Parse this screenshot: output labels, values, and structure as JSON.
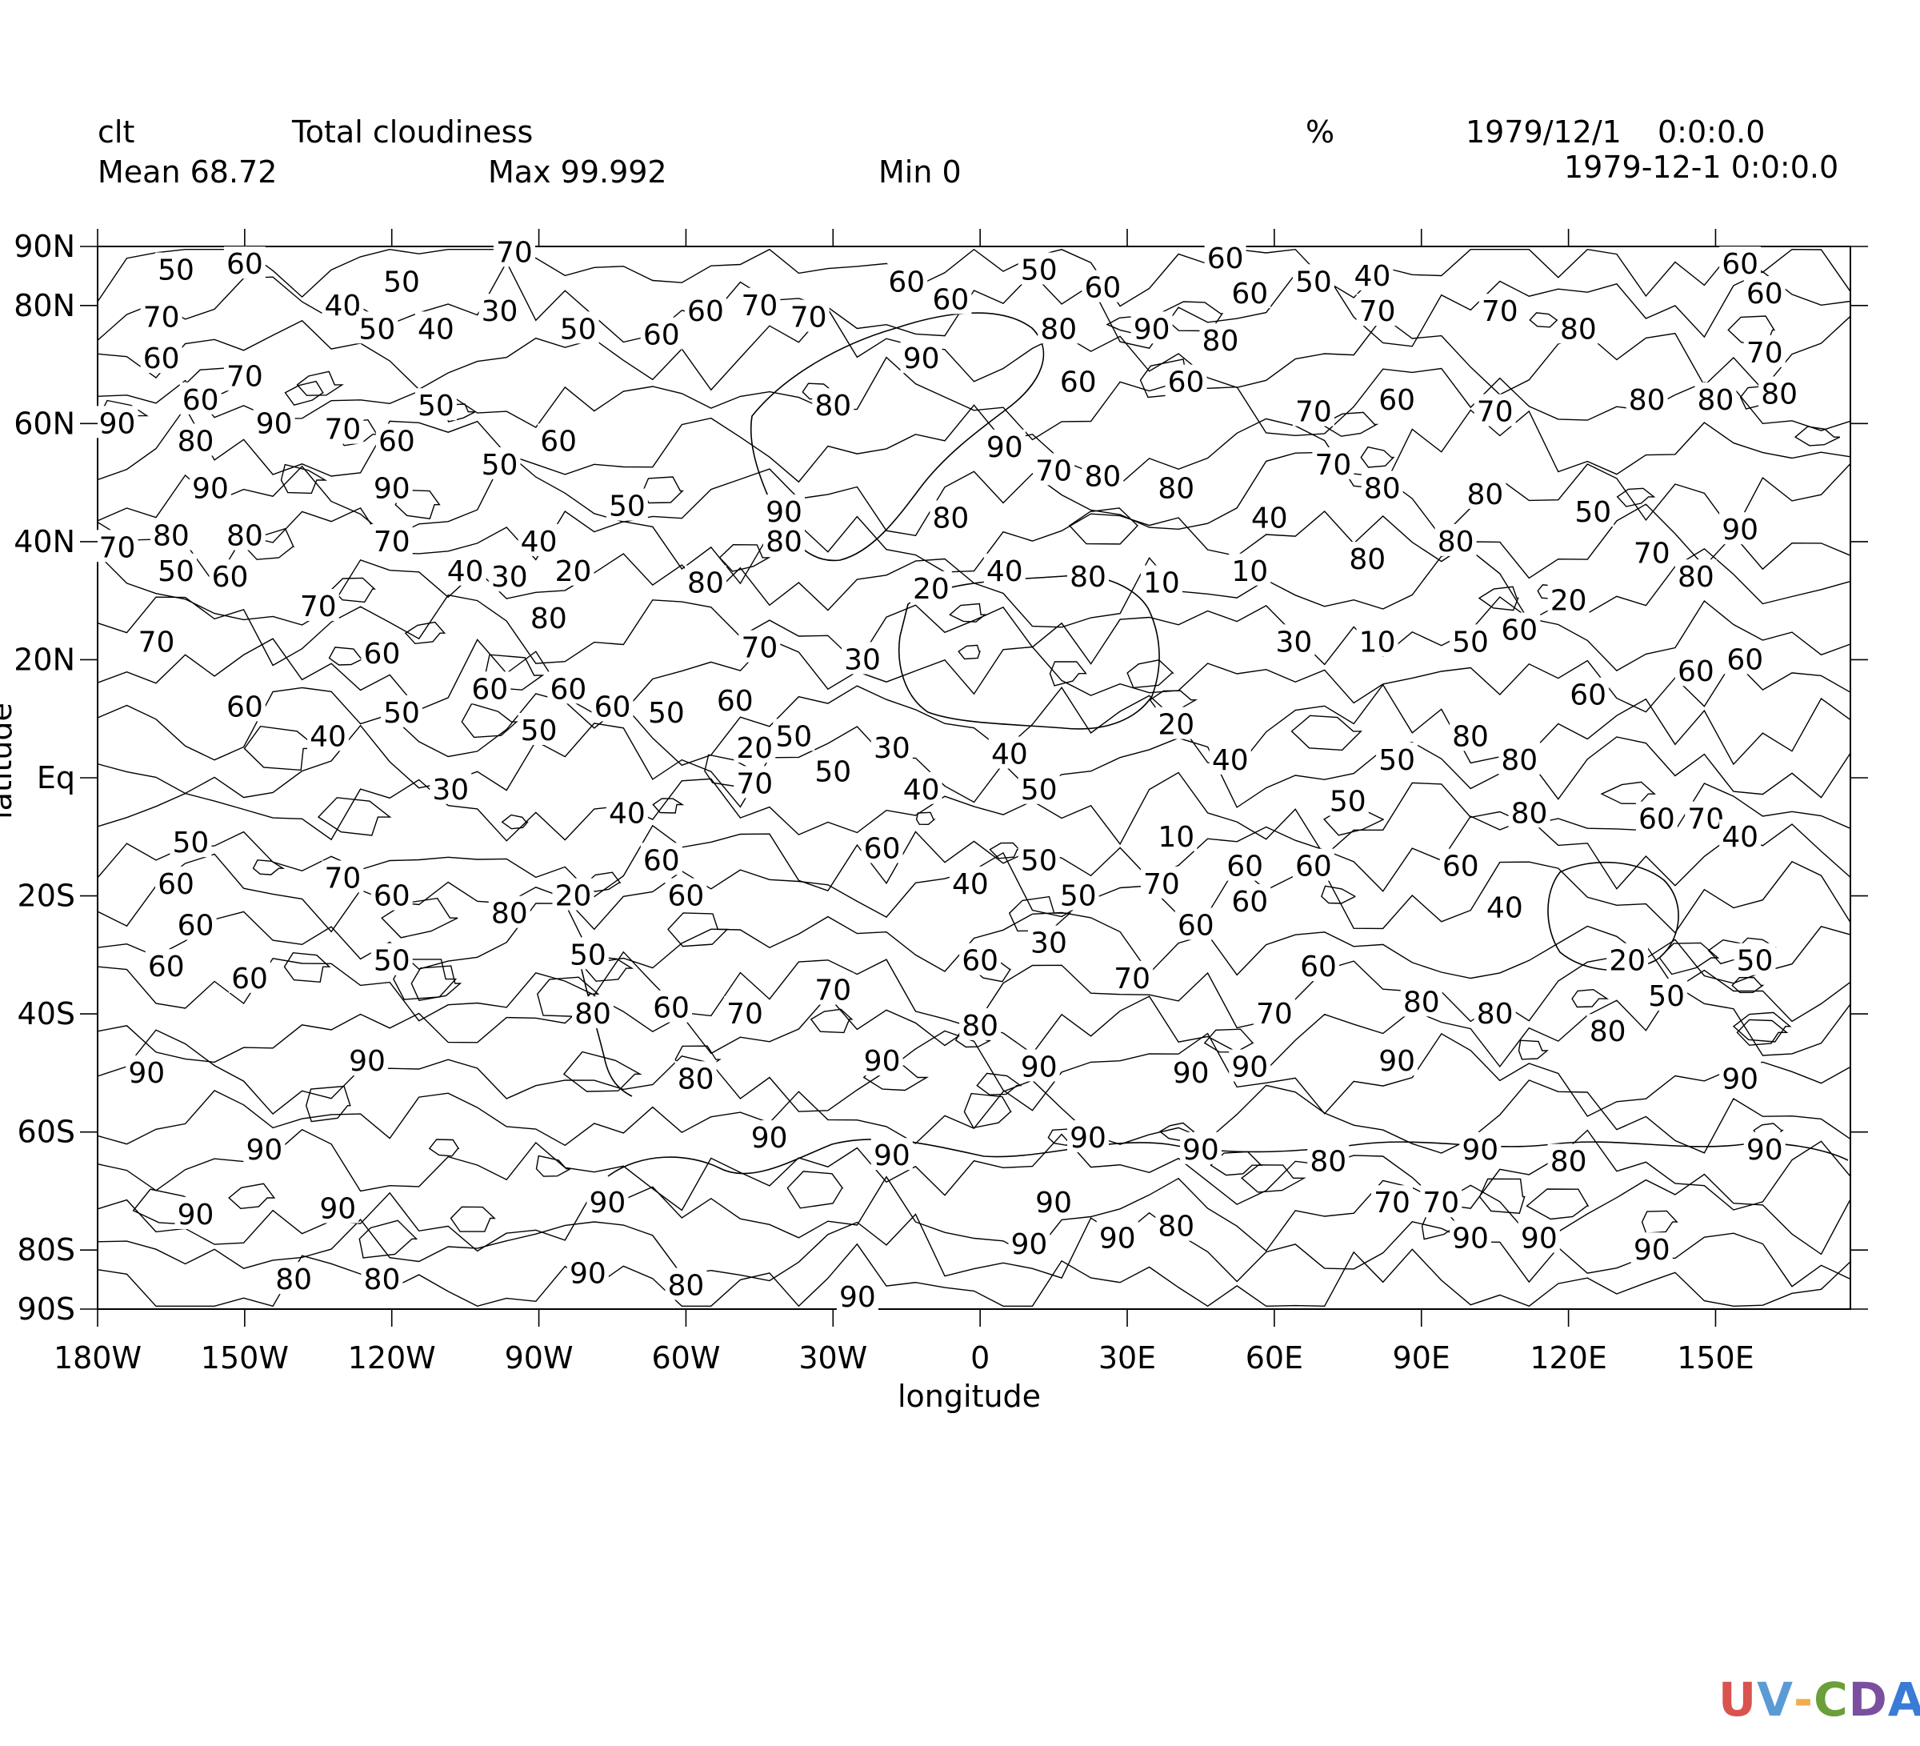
{
  "header": {
    "variable": "clt",
    "long_name": "Total cloudiness",
    "units": "%",
    "date": "1979/12/1",
    "time": "0:0:0.0",
    "timestamp": "1979-12-1 0:0:0.0",
    "mean": "Mean 68.72",
    "max": "Max 99.992",
    "min": "Min 0"
  },
  "axes": {
    "xlabel": "longitude",
    "ylabel": "latitude",
    "x_ticks": [
      "180W",
      "150W",
      "120W",
      "90W",
      "60W",
      "30W",
      "0",
      "30E",
      "60E",
      "90E",
      "120E",
      "150E"
    ],
    "x_tick_values": [
      -180,
      -150,
      -120,
      -90,
      -60,
      -30,
      0,
      30,
      60,
      90,
      120,
      150
    ],
    "y_ticks": [
      "90N",
      "80N",
      "60N",
      "40N",
      "20N",
      "Eq",
      "20S",
      "40S",
      "60S",
      "80S",
      "90S"
    ],
    "y_tick_values": [
      90,
      80,
      60,
      40,
      20,
      0,
      -20,
      -40,
      -60,
      -80,
      -90
    ],
    "xlim": [
      -180,
      177.5
    ],
    "ylim": [
      -90,
      90
    ]
  },
  "contour_labels": [
    {
      "text": "50",
      "lon": -164,
      "lat": 86
    },
    {
      "text": "60",
      "lon": -150,
      "lat": 87
    },
    {
      "text": "70",
      "lon": -95,
      "lat": 89
    },
    {
      "text": "50",
      "lon": -118,
      "lat": 84
    },
    {
      "text": "40",
      "lon": -130,
      "lat": 80
    },
    {
      "text": "30",
      "lon": -98,
      "lat": 79
    },
    {
      "text": "50",
      "lon": -123,
      "lat": 76
    },
    {
      "text": "40",
      "lon": -111,
      "lat": 76
    },
    {
      "text": "50",
      "lon": -82,
      "lat": 76
    },
    {
      "text": "60",
      "lon": -65,
      "lat": 75
    },
    {
      "text": "60",
      "lon": -56,
      "lat": 79
    },
    {
      "text": "70",
      "lon": -45,
      "lat": 80
    },
    {
      "text": "70",
      "lon": -35,
      "lat": 78
    },
    {
      "text": "60",
      "lon": -15,
      "lat": 84
    },
    {
      "text": "50",
      "lon": 12,
      "lat": 86
    },
    {
      "text": "60",
      "lon": 25,
      "lat": 83
    },
    {
      "text": "60",
      "lon": 50,
      "lat": 88
    },
    {
      "text": "60",
      "lon": 55,
      "lat": 82
    },
    {
      "text": "50",
      "lon": 68,
      "lat": 84
    },
    {
      "text": "40",
      "lon": 80,
      "lat": 85
    },
    {
      "text": "70",
      "lon": 81,
      "lat": 79
    },
    {
      "text": "70",
      "lon": 106,
      "lat": 79
    },
    {
      "text": "60",
      "lon": 155,
      "lat": 87
    },
    {
      "text": "60",
      "lon": 160,
      "lat": 82
    },
    {
      "text": "80",
      "lon": 122,
      "lat": 76
    },
    {
      "text": "70",
      "lon": 160,
      "lat": 72
    },
    {
      "text": "80",
      "lon": 136,
      "lat": 64
    },
    {
      "text": "80",
      "lon": 150,
      "lat": 64
    },
    {
      "text": "80",
      "lon": 163,
      "lat": 65
    },
    {
      "text": "60",
      "lon": -6,
      "lat": 81
    },
    {
      "text": "80",
      "lon": 16,
      "lat": 76
    },
    {
      "text": "90",
      "lon": 35,
      "lat": 76
    },
    {
      "text": "80",
      "lon": 49,
      "lat": 74
    },
    {
      "text": "90",
      "lon": -12,
      "lat": 71
    },
    {
      "text": "60",
      "lon": 20,
      "lat": 67
    },
    {
      "text": "60",
      "lon": 42,
      "lat": 67
    },
    {
      "text": "70",
      "lon": 68,
      "lat": 62
    },
    {
      "text": "60",
      "lon": 85,
      "lat": 64
    },
    {
      "text": "70",
      "lon": 105,
      "lat": 62
    },
    {
      "text": "80",
      "lon": -30,
      "lat": 63
    },
    {
      "text": "70",
      "lon": -167,
      "lat": 78
    },
    {
      "text": "60",
      "lon": -167,
      "lat": 71
    },
    {
      "text": "70",
      "lon": -150,
      "lat": 68
    },
    {
      "text": "60",
      "lon": -159,
      "lat": 64
    },
    {
      "text": "50",
      "lon": -111,
      "lat": 63
    },
    {
      "text": "90",
      "lon": -176,
      "lat": 60
    },
    {
      "text": "80",
      "lon": -160,
      "lat": 57
    },
    {
      "text": "90",
      "lon": -144,
      "lat": 60
    },
    {
      "text": "70",
      "lon": -130,
      "lat": 59
    },
    {
      "text": "60",
      "lon": -119,
      "lat": 57
    },
    {
      "text": "60",
      "lon": -86,
      "lat": 57
    },
    {
      "text": "50",
      "lon": -98,
      "lat": 53
    },
    {
      "text": "90",
      "lon": -157,
      "lat": 49
    },
    {
      "text": "90",
      "lon": -120,
      "lat": 49
    },
    {
      "text": "80",
      "lon": -165,
      "lat": 41
    },
    {
      "text": "80",
      "lon": -150,
      "lat": 41
    },
    {
      "text": "70",
      "lon": -176,
      "lat": 39
    },
    {
      "text": "70",
      "lon": -120,
      "lat": 40
    },
    {
      "text": "50",
      "lon": -164,
      "lat": 35
    },
    {
      "text": "60",
      "lon": -153,
      "lat": 34
    },
    {
      "text": "40",
      "lon": -105,
      "lat": 35
    },
    {
      "text": "30",
      "lon": -96,
      "lat": 34
    },
    {
      "text": "40",
      "lon": -90,
      "lat": 40
    },
    {
      "text": "50",
      "lon": -72,
      "lat": 46
    },
    {
      "text": "20",
      "lon": -83,
      "lat": 35
    },
    {
      "text": "70",
      "lon": -135,
      "lat": 29
    },
    {
      "text": "70",
      "lon": -168,
      "lat": 23
    },
    {
      "text": "80",
      "lon": -88,
      "lat": 27
    },
    {
      "text": "60",
      "lon": -122,
      "lat": 21
    },
    {
      "text": "60",
      "lon": -150,
      "lat": 12
    },
    {
      "text": "50",
      "lon": -118,
      "lat": 11
    },
    {
      "text": "40",
      "lon": -133,
      "lat": 7
    },
    {
      "text": "60",
      "lon": -100,
      "lat": 15
    },
    {
      "text": "60",
      "lon": -84,
      "lat": 15
    },
    {
      "text": "60",
      "lon": -75,
      "lat": 12
    },
    {
      "text": "50",
      "lon": -64,
      "lat": 11
    },
    {
      "text": "50",
      "lon": -90,
      "lat": 8
    },
    {
      "text": "60",
      "lon": -50,
      "lat": 13
    },
    {
      "text": "50",
      "lon": -38,
      "lat": 7
    },
    {
      "text": "30",
      "lon": -108,
      "lat": -2
    },
    {
      "text": "90",
      "lon": -40,
      "lat": 45
    },
    {
      "text": "80",
      "lon": -40,
      "lat": 40
    },
    {
      "text": "80",
      "lon": -56,
      "lat": 33
    },
    {
      "text": "70",
      "lon": -45,
      "lat": 22
    },
    {
      "text": "30",
      "lon": -24,
      "lat": 20
    },
    {
      "text": "20",
      "lon": -10,
      "lat": 32
    },
    {
      "text": "80",
      "lon": -6,
      "lat": 44
    },
    {
      "text": "40",
      "lon": 5,
      "lat": 35
    },
    {
      "text": "80",
      "lon": 22,
      "lat": 34
    },
    {
      "text": "10",
      "lon": 37,
      "lat": 33
    },
    {
      "text": "10",
      "lon": 55,
      "lat": 35
    },
    {
      "text": "40",
      "lon": 59,
      "lat": 44
    },
    {
      "text": "90",
      "lon": 5,
      "lat": 56
    },
    {
      "text": "70",
      "lon": 15,
      "lat": 52
    },
    {
      "text": "80",
      "lon": 25,
      "lat": 51
    },
    {
      "text": "80",
      "lon": 40,
      "lat": 49
    },
    {
      "text": "70",
      "lon": 72,
      "lat": 53
    },
    {
      "text": "80",
      "lon": 82,
      "lat": 49
    },
    {
      "text": "80",
      "lon": 103,
      "lat": 48
    },
    {
      "text": "80",
      "lon": 97,
      "lat": 40
    },
    {
      "text": "80",
      "lon": 79,
      "lat": 37
    },
    {
      "text": "50",
      "lon": 125,
      "lat": 45
    },
    {
      "text": "90",
      "lon": 155,
      "lat": 42
    },
    {
      "text": "70",
      "lon": 137,
      "lat": 38
    },
    {
      "text": "80",
      "lon": 146,
      "lat": 34
    },
    {
      "text": "20",
      "lon": 120,
      "lat": 30
    },
    {
      "text": "60",
      "lon": 110,
      "lat": 25
    },
    {
      "text": "50",
      "lon": 100,
      "lat": 23
    },
    {
      "text": "10",
      "lon": 81,
      "lat": 23
    },
    {
      "text": "30",
      "lon": 64,
      "lat": 23
    },
    {
      "text": "60",
      "lon": 146,
      "lat": 18
    },
    {
      "text": "60",
      "lon": 156,
      "lat": 20
    },
    {
      "text": "60",
      "lon": 124,
      "lat": 14
    },
    {
      "text": "20",
      "lon": 40,
      "lat": 9
    },
    {
      "text": "80",
      "lon": 100,
      "lat": 7
    },
    {
      "text": "80",
      "lon": 110,
      "lat": 3
    },
    {
      "text": "50",
      "lon": 85,
      "lat": 3
    },
    {
      "text": "40",
      "lon": 51,
      "lat": 3
    },
    {
      "text": "50",
      "lon": 75,
      "lat": -4
    },
    {
      "text": "80",
      "lon": 112,
      "lat": -6
    },
    {
      "text": "60",
      "lon": 138,
      "lat": -7
    },
    {
      "text": "70",
      "lon": 148,
      "lat": -7
    },
    {
      "text": "40",
      "lon": 155,
      "lat": -10
    },
    {
      "text": "60",
      "lon": 98,
      "lat": -15
    },
    {
      "text": "40",
      "lon": 107,
      "lat": -22
    },
    {
      "text": "60",
      "lon": 68,
      "lat": -15
    },
    {
      "text": "60",
      "lon": 55,
      "lat": -21
    },
    {
      "text": "60",
      "lon": 54,
      "lat": -15
    },
    {
      "text": "10",
      "lon": 40,
      "lat": -10
    },
    {
      "text": "70",
      "lon": 37,
      "lat": -18
    },
    {
      "text": "60",
      "lon": 44,
      "lat": -25
    },
    {
      "text": "20",
      "lon": -46,
      "lat": 5
    },
    {
      "text": "30",
      "lon": -18,
      "lat": 5
    },
    {
      "text": "40",
      "lon": 6,
      "lat": 4
    },
    {
      "text": "50",
      "lon": -30,
      "lat": 1
    },
    {
      "text": "40",
      "lon": -12,
      "lat": -2
    },
    {
      "text": "50",
      "lon": 12,
      "lat": -2
    },
    {
      "text": "70",
      "lon": -46,
      "lat": -1
    },
    {
      "text": "40",
      "lon": -72,
      "lat": -6
    },
    {
      "text": "60",
      "lon": -65,
      "lat": -14
    },
    {
      "text": "60",
      "lon": -60,
      "lat": -20
    },
    {
      "text": "60",
      "lon": -20,
      "lat": -12
    },
    {
      "text": "40",
      "lon": -2,
      "lat": -18
    },
    {
      "text": "50",
      "lon": 12,
      "lat": -14
    },
    {
      "text": "50",
      "lon": 20,
      "lat": -20
    },
    {
      "text": "30",
      "lon": 14,
      "lat": -28
    },
    {
      "text": "60",
      "lon": 0,
      "lat": -31
    },
    {
      "text": "70",
      "lon": 31,
      "lat": -34
    },
    {
      "text": "60",
      "lon": 69,
      "lat": -32
    },
    {
      "text": "70",
      "lon": -30,
      "lat": -36
    },
    {
      "text": "70",
      "lon": -48,
      "lat": -40
    },
    {
      "text": "60",
      "lon": -63,
      "lat": -39
    },
    {
      "text": "80",
      "lon": -79,
      "lat": -40
    },
    {
      "text": "50",
      "lon": -80,
      "lat": -30
    },
    {
      "text": "20",
      "lon": -83,
      "lat": -20
    },
    {
      "text": "80",
      "lon": -96,
      "lat": -23
    },
    {
      "text": "50",
      "lon": -161,
      "lat": -11
    },
    {
      "text": "60",
      "lon": -164,
      "lat": -18
    },
    {
      "text": "60",
      "lon": -160,
      "lat": -25
    },
    {
      "text": "60",
      "lon": -166,
      "lat": -32
    },
    {
      "text": "60",
      "lon": -149,
      "lat": -34
    },
    {
      "text": "70",
      "lon": -130,
      "lat": -17
    },
    {
      "text": "60",
      "lon": -120,
      "lat": -20
    },
    {
      "text": "50",
      "lon": -120,
      "lat": -31
    },
    {
      "text": "80",
      "lon": 0,
      "lat": -42
    },
    {
      "text": "70",
      "lon": 60,
      "lat": -40
    },
    {
      "text": "80",
      "lon": 90,
      "lat": -38
    },
    {
      "text": "80",
      "lon": 105,
      "lat": -40
    },
    {
      "text": "20",
      "lon": 132,
      "lat": -31
    },
    {
      "text": "50",
      "lon": 140,
      "lat": -37
    },
    {
      "text": "50",
      "lon": 158,
      "lat": -31
    },
    {
      "text": "80",
      "lon": 128,
      "lat": -43
    },
    {
      "text": "90",
      "lon": -170,
      "lat": -50
    },
    {
      "text": "90",
      "lon": -125,
      "lat": -48
    },
    {
      "text": "90",
      "lon": -20,
      "lat": -48
    },
    {
      "text": "90",
      "lon": 12,
      "lat": -49
    },
    {
      "text": "90",
      "lon": 43,
      "lat": -50
    },
    {
      "text": "90",
      "lon": 55,
      "lat": -49
    },
    {
      "text": "90",
      "lon": 85,
      "lat": -48
    },
    {
      "text": "90",
      "lon": 155,
      "lat": -51
    },
    {
      "text": "80",
      "lon": -58,
      "lat": -51
    },
    {
      "text": "90",
      "lon": -43,
      "lat": -61
    },
    {
      "text": "90",
      "lon": -18,
      "lat": -64
    },
    {
      "text": "90",
      "lon": 22,
      "lat": -61
    },
    {
      "text": "90",
      "lon": 45,
      "lat": -63
    },
    {
      "text": "80",
      "lon": 71,
      "lat": -65
    },
    {
      "text": "90",
      "lon": 102,
      "lat": -63
    },
    {
      "text": "80",
      "lon": 120,
      "lat": -65
    },
    {
      "text": "90",
      "lon": 160,
      "lat": -63
    },
    {
      "text": "90",
      "lon": -146,
      "lat": -63
    },
    {
      "text": "90",
      "lon": -160,
      "lat": -74
    },
    {
      "text": "90",
      "lon": -131,
      "lat": -73
    },
    {
      "text": "90",
      "lon": -76,
      "lat": -72
    },
    {
      "text": "90",
      "lon": 15,
      "lat": -72
    },
    {
      "text": "70",
      "lon": 84,
      "lat": -72
    },
    {
      "text": "70",
      "lon": 94,
      "lat": -72
    },
    {
      "text": "80",
      "lon": 40,
      "lat": -76
    },
    {
      "text": "90",
      "lon": 10,
      "lat": -79
    },
    {
      "text": "90",
      "lon": 28,
      "lat": -78
    },
    {
      "text": "90",
      "lon": 100,
      "lat": -78
    },
    {
      "text": "90",
      "lon": 114,
      "lat": -78
    },
    {
      "text": "90",
      "lon": 137,
      "lat": -80
    },
    {
      "text": "80",
      "lon": -140,
      "lat": -85
    },
    {
      "text": "80",
      "lon": -122,
      "lat": -85
    },
    {
      "text": "90",
      "lon": -80,
      "lat": -84
    },
    {
      "text": "80",
      "lon": -60,
      "lat": -86
    },
    {
      "text": "90",
      "lon": -25,
      "lat": -88
    }
  ],
  "logo": {
    "text": "UV-CDAT",
    "colors": [
      "#d9534f",
      "#5b9bd5",
      "#f0ad4e",
      "#6a9f3a",
      "#7b4fa0",
      "#3a7bd5"
    ]
  }
}
